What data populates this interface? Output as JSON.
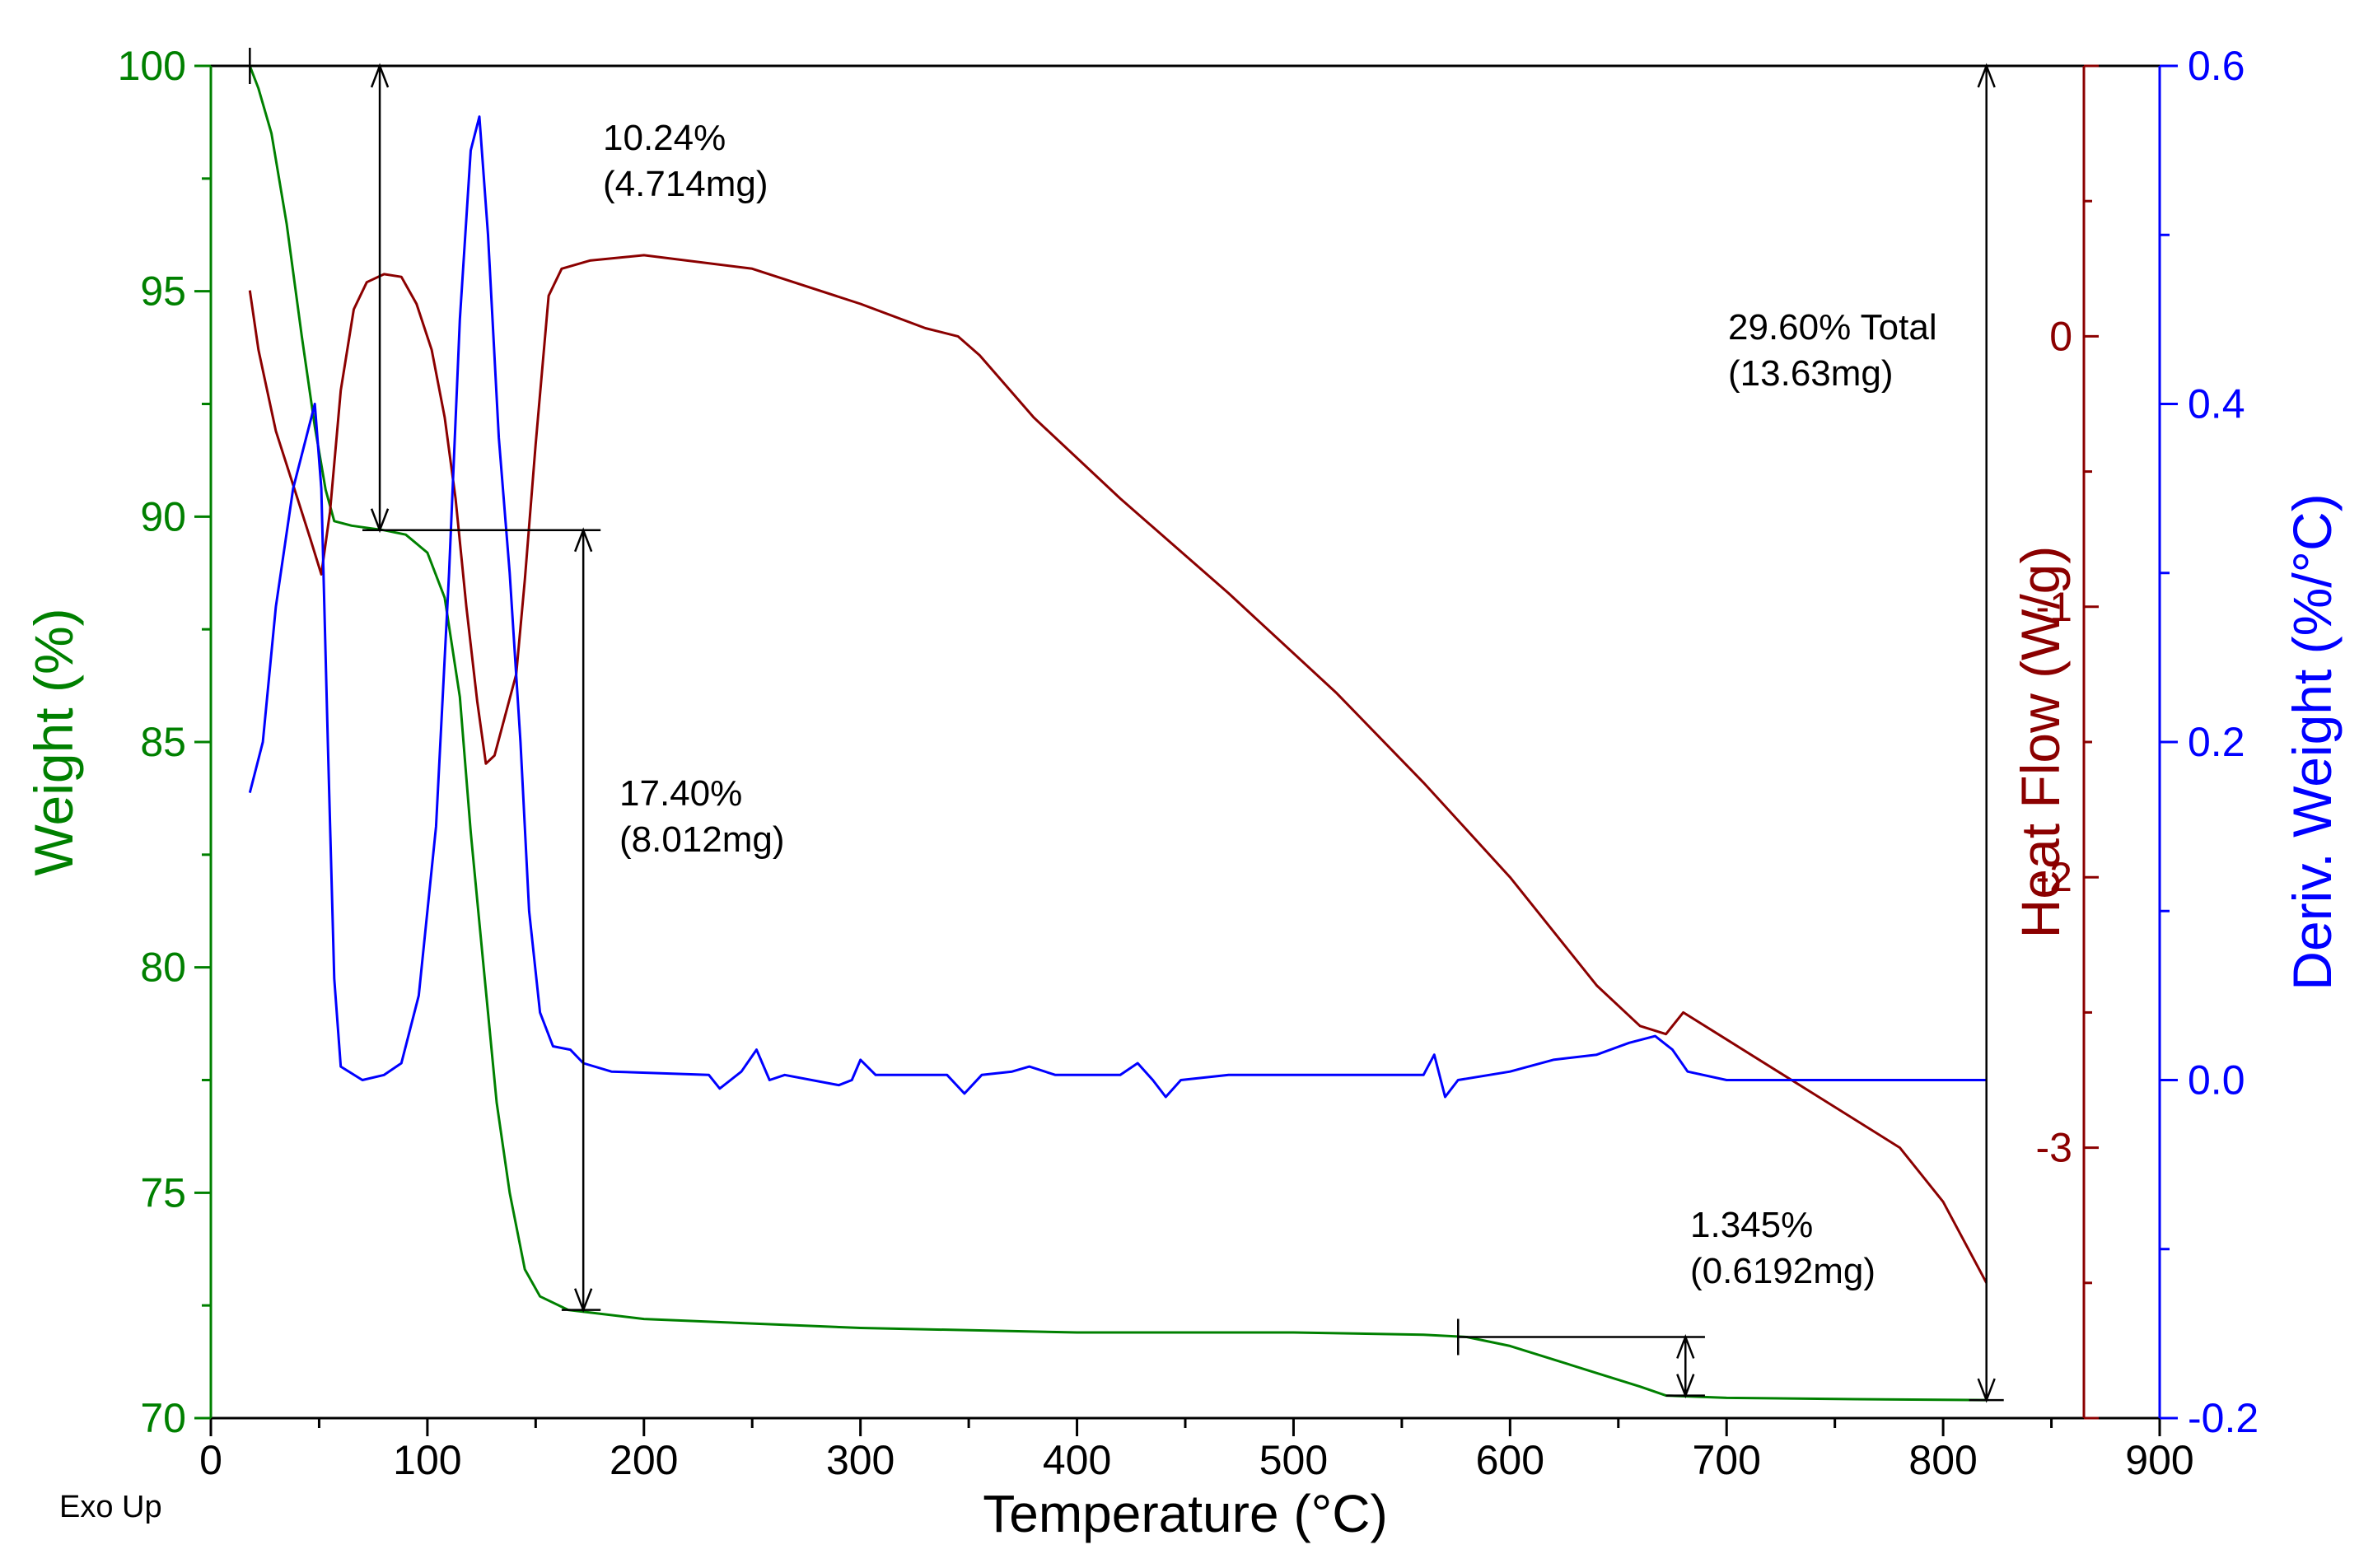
{
  "chart_data": {
    "type": "line",
    "title": "",
    "xlabel": "Temperature (°C)",
    "footnote": "Exo Up",
    "xlim": [
      0,
      900
    ],
    "x_ticks": [
      0,
      100,
      200,
      300,
      400,
      500,
      600,
      700,
      800,
      900
    ],
    "axes": {
      "weight": {
        "label": "Weight (%)",
        "color": "#008000",
        "lim": [
          70,
          100
        ],
        "ticks": [
          70,
          75,
          80,
          85,
          90,
          95,
          100
        ]
      },
      "heatflow": {
        "label": "Heat Flow (W/g)",
        "color": "#8B0000",
        "lim": [
          -4,
          1
        ],
        "ticks": [
          -3,
          -2,
          -1,
          0
        ]
      },
      "deriv": {
        "label": "Deriv. Weight (%/°C)",
        "color": "#0000FF",
        "lim": [
          -0.2,
          0.6
        ],
        "ticks": [
          -0.2,
          0.0,
          0.2,
          0.4,
          0.6
        ],
        "tick_labels": [
          "-0.2",
          "0.0",
          "0.2",
          "0.4",
          "0.6"
        ]
      }
    },
    "series": [
      {
        "name": "Weight",
        "axis": "weight",
        "color": "#008000",
        "points": [
          [
            18,
            100
          ],
          [
            22,
            99.5
          ],
          [
            28,
            98.5
          ],
          [
            35,
            96.5
          ],
          [
            42,
            94
          ],
          [
            48,
            92
          ],
          [
            53,
            90.6
          ],
          [
            57,
            89.9
          ],
          [
            65,
            89.8
          ],
          [
            80,
            89.7
          ],
          [
            90,
            89.6
          ],
          [
            100,
            89.2
          ],
          [
            108,
            88.2
          ],
          [
            115,
            86
          ],
          [
            120,
            83
          ],
          [
            126,
            80
          ],
          [
            132,
            77
          ],
          [
            138,
            75
          ],
          [
            145,
            73.3
          ],
          [
            152,
            72.7
          ],
          [
            165,
            72.4
          ],
          [
            200,
            72.2
          ],
          [
            250,
            72.1
          ],
          [
            300,
            72
          ],
          [
            400,
            71.9
          ],
          [
            500,
            71.9
          ],
          [
            560,
            71.85
          ],
          [
            580,
            71.8
          ],
          [
            600,
            71.6
          ],
          [
            620,
            71.3
          ],
          [
            640,
            71
          ],
          [
            660,
            70.7
          ],
          [
            672,
            70.5
          ],
          [
            700,
            70.45
          ],
          [
            760,
            70.42
          ],
          [
            820,
            70.4
          ]
        ]
      },
      {
        "name": "Heat Flow",
        "axis": "heatflow",
        "color": "#8B0000",
        "points": [
          [
            18,
            0.17
          ],
          [
            22,
            -0.05
          ],
          [
            30,
            -0.35
          ],
          [
            40,
            -0.6
          ],
          [
            46,
            -0.75
          ],
          [
            51,
            -0.88
          ],
          [
            55,
            -0.65
          ],
          [
            60,
            -0.2
          ],
          [
            66,
            0.1
          ],
          [
            72,
            0.2
          ],
          [
            80,
            0.23
          ],
          [
            88,
            0.22
          ],
          [
            95,
            0.12
          ],
          [
            102,
            -0.05
          ],
          [
            108,
            -0.3
          ],
          [
            113,
            -0.6
          ],
          [
            118,
            -1.0
          ],
          [
            123,
            -1.35
          ],
          [
            127,
            -1.58
          ],
          [
            131,
            -1.55
          ],
          [
            136,
            -1.4
          ],
          [
            141,
            -1.25
          ],
          [
            145,
            -0.9
          ],
          [
            150,
            -0.4
          ],
          [
            156,
            0.15
          ],
          [
            162,
            0.25
          ],
          [
            175,
            0.28
          ],
          [
            200,
            0.3
          ],
          [
            250,
            0.25
          ],
          [
            300,
            0.12
          ],
          [
            330,
            0.03
          ],
          [
            345,
            0.0
          ],
          [
            355,
            -0.07
          ],
          [
            380,
            -0.3
          ],
          [
            420,
            -0.6
          ],
          [
            470,
            -0.95
          ],
          [
            520,
            -1.32
          ],
          [
            560,
            -1.65
          ],
          [
            600,
            -2.0
          ],
          [
            640,
            -2.4
          ],
          [
            660,
            -2.55
          ],
          [
            672,
            -2.58
          ],
          [
            680,
            -2.5
          ],
          [
            700,
            -2.6
          ],
          [
            740,
            -2.8
          ],
          [
            780,
            -3.0
          ],
          [
            800,
            -3.2
          ],
          [
            820,
            -3.5
          ]
        ]
      },
      {
        "name": "Deriv. Weight",
        "axis": "deriv",
        "color": "#0000FF",
        "points": [
          [
            18,
            0.17
          ],
          [
            24,
            0.2
          ],
          [
            30,
            0.28
          ],
          [
            38,
            0.35
          ],
          [
            44,
            0.38
          ],
          [
            48,
            0.4
          ],
          [
            51,
            0.35
          ],
          [
            54,
            0.2
          ],
          [
            57,
            0.06
          ],
          [
            60,
            0.008
          ],
          [
            70,
            0.0
          ],
          [
            80,
            0.003
          ],
          [
            88,
            0.01
          ],
          [
            96,
            0.05
          ],
          [
            104,
            0.15
          ],
          [
            110,
            0.3
          ],
          [
            115,
            0.45
          ],
          [
            120,
            0.55
          ],
          [
            124,
            0.57
          ],
          [
            128,
            0.5
          ],
          [
            133,
            0.38
          ],
          [
            138,
            0.3
          ],
          [
            143,
            0.2
          ],
          [
            147,
            0.1
          ],
          [
            152,
            0.04
          ],
          [
            158,
            0.02
          ],
          [
            166,
            0.018
          ],
          [
            172,
            0.01
          ],
          [
            185,
            0.005
          ],
          [
            230,
            0.003
          ],
          [
            235,
            -0.005
          ],
          [
            245,
            0.005
          ],
          [
            252,
            0.018
          ],
          [
            258,
            0.0
          ],
          [
            265,
            0.003
          ],
          [
            290,
            -0.003
          ],
          [
            296,
            0.0
          ],
          [
            300,
            0.012
          ],
          [
            307,
            0.003
          ],
          [
            340,
            0.003
          ],
          [
            348,
            -0.008
          ],
          [
            356,
            0.003
          ],
          [
            370,
            0.005
          ],
          [
            378,
            0.008
          ],
          [
            390,
            0.003
          ],
          [
            420,
            0.003
          ],
          [
            428,
            0.01
          ],
          [
            435,
            0.0
          ],
          [
            441,
            -0.01
          ],
          [
            448,
            0.0
          ],
          [
            470,
            0.003
          ],
          [
            560,
            0.003
          ],
          [
            565,
            0.015
          ],
          [
            570,
            -0.01
          ],
          [
            576,
            0.0
          ],
          [
            600,
            0.005
          ],
          [
            620,
            0.012
          ],
          [
            640,
            0.015
          ],
          [
            655,
            0.022
          ],
          [
            667,
            0.026
          ],
          [
            675,
            0.018
          ],
          [
            682,
            0.005
          ],
          [
            700,
            0.0
          ],
          [
            820,
            0.0
          ]
        ]
      }
    ],
    "annotations": [
      {
        "lines": [
          "10.24%",
          "(4.714mg)"
        ]
      },
      {
        "lines": [
          "17.40%",
          "(8.012mg)"
        ]
      },
      {
        "lines": [
          "29.60% Total",
          "(13.63mg)"
        ]
      },
      {
        "lines": [
          "1.345%",
          "(0.6192mg)"
        ]
      }
    ],
    "step_markers": [
      {
        "x1": 18,
        "x2": 820,
        "y": 100,
        "tick_x": 18
      },
      {
        "x1": 70,
        "x2": 180,
        "y": 89.7
      },
      {
        "x1": 162,
        "x2": 180,
        "y": 72.4
      },
      {
        "x1": 576,
        "x2": 690,
        "y": 71.8,
        "tick_x": 576
      },
      {
        "x1": 672,
        "x2": 690,
        "y": 70.5
      },
      {
        "x1": 812,
        "x2": 828,
        "y": 70.4
      }
    ],
    "arrows": [
      {
        "x": 78,
        "y_from": 100,
        "y_to": 89.7
      },
      {
        "x": 172,
        "y_from": 89.7,
        "y_to": 72.4
      },
      {
        "x": 681,
        "y_from": 71.8,
        "y_to": 70.5
      },
      {
        "x": 820,
        "y_from": 100,
        "y_to": 70.4
      }
    ]
  }
}
